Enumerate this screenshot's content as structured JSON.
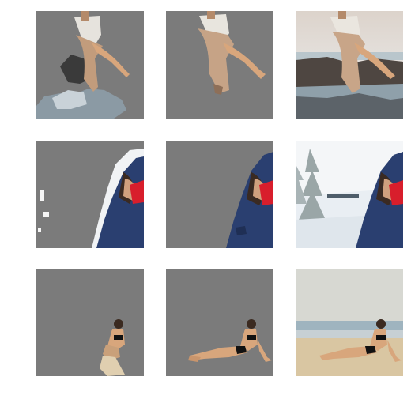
{
  "figure": {
    "rows": [
      {
        "subject": "dancer-on-rocky-shore",
        "tiles": [
          {
            "kind": "mask-prediction-a"
          },
          {
            "kind": "mask-prediction-b"
          },
          {
            "kind": "original-photo"
          }
        ]
      },
      {
        "subject": "person-in-blue-hood-snow",
        "tiles": [
          {
            "kind": "mask-prediction-a"
          },
          {
            "kind": "mask-prediction-b"
          },
          {
            "kind": "original-photo"
          }
        ]
      },
      {
        "subject": "woman-in-bikini-on-beach",
        "tiles": [
          {
            "kind": "mask-prediction-a"
          },
          {
            "kind": "mask-prediction-b"
          },
          {
            "kind": "original-photo"
          }
        ]
      }
    ],
    "colors": {
      "background": "#7b7b7b",
      "skin": "#d8a67c",
      "jacket": "#283d6c",
      "sand": "#d9c6a2",
      "sea": "#9fb4bf",
      "snow": "#e9eef3"
    }
  }
}
